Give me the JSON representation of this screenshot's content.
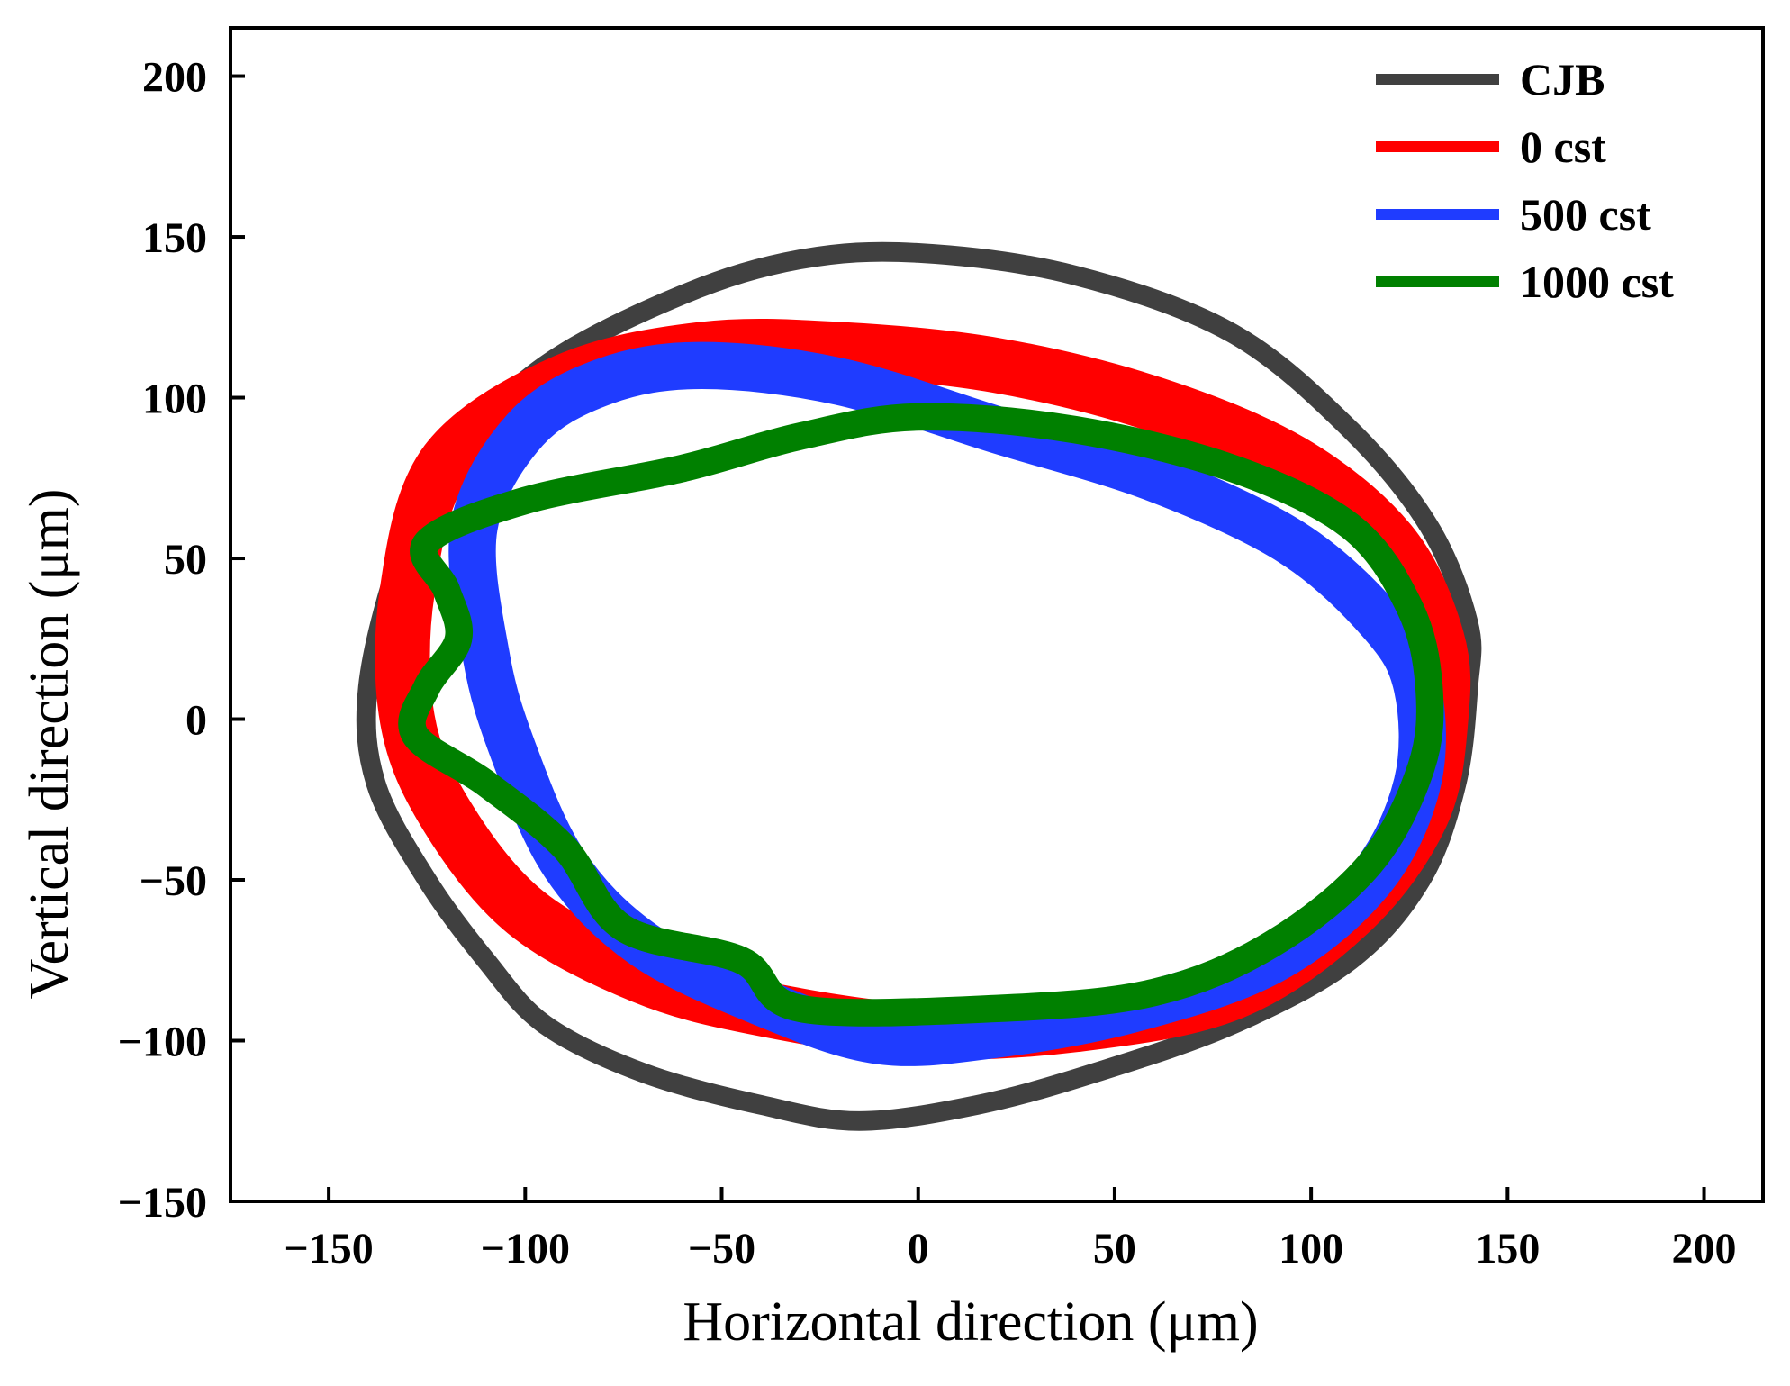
{
  "chart_data": {
    "type": "line",
    "title": "",
    "xlabel": "Horizontal direction (μm)",
    "ylabel": "Vertical direction (μm)",
    "xlim": [
      -175,
      215
    ],
    "ylim": [
      -150,
      215
    ],
    "xticks": [
      -150,
      -100,
      -50,
      0,
      50,
      100,
      150,
      200
    ],
    "yticks": [
      -150,
      -100,
      -50,
      0,
      50,
      100,
      150,
      200
    ],
    "xtick_labels": [
      "−150",
      "−100",
      "−50",
      "0",
      "50",
      "100",
      "150",
      "200"
    ],
    "ytick_labels": [
      "−150",
      "−100",
      "−50",
      "0",
      "50",
      "100",
      "150",
      "200"
    ],
    "grid": false,
    "legend_position": "top-right",
    "series": [
      {
        "name": "CJB",
        "color": "#404040",
        "band_width_um": 5,
        "points": [
          [
            0,
            145
          ],
          [
            40,
            138
          ],
          [
            80,
            120
          ],
          [
            110,
            90
          ],
          [
            130,
            60
          ],
          [
            140,
            30
          ],
          [
            140,
            10
          ],
          [
            137,
            -20
          ],
          [
            128,
            -50
          ],
          [
            110,
            -75
          ],
          [
            80,
            -95
          ],
          [
            45,
            -110
          ],
          [
            15,
            -120
          ],
          [
            -15,
            -125
          ],
          [
            -40,
            -120
          ],
          [
            -70,
            -110
          ],
          [
            -95,
            -95
          ],
          [
            -110,
            -75
          ],
          [
            -125,
            -50
          ],
          [
            -138,
            -20
          ],
          [
            -140,
            10
          ],
          [
            -132,
            50
          ],
          [
            -120,
            80
          ],
          [
            -95,
            110
          ],
          [
            -60,
            132
          ],
          [
            -30,
            143
          ],
          [
            0,
            145
          ]
        ]
      },
      {
        "name": "0 cst",
        "color": "#ff0000",
        "band_width_um": 14,
        "points": [
          [
            -20,
            115
          ],
          [
            20,
            110
          ],
          [
            60,
            98
          ],
          [
            95,
            80
          ],
          [
            120,
            55
          ],
          [
            132,
            25
          ],
          [
            133,
            0
          ],
          [
            128,
            -30
          ],
          [
            110,
            -60
          ],
          [
            80,
            -85
          ],
          [
            40,
            -95
          ],
          [
            0,
            -97
          ],
          [
            -40,
            -90
          ],
          [
            -70,
            -80
          ],
          [
            -100,
            -60
          ],
          [
            -120,
            -30
          ],
          [
            -130,
            0
          ],
          [
            -130,
            40
          ],
          [
            -120,
            80
          ],
          [
            -90,
            105
          ],
          [
            -55,
            115
          ],
          [
            -20,
            115
          ]
        ]
      },
      {
        "name": "500 cst",
        "color": "#1f3cff",
        "band_width_um": 12,
        "points": [
          [
            -55,
            110
          ],
          [
            -20,
            105
          ],
          [
            20,
            90
          ],
          [
            60,
            75
          ],
          [
            95,
            55
          ],
          [
            118,
            30
          ],
          [
            127,
            10
          ],
          [
            127,
            -20
          ],
          [
            115,
            -50
          ],
          [
            90,
            -75
          ],
          [
            55,
            -90
          ],
          [
            20,
            -98
          ],
          [
            -10,
            -100
          ],
          [
            -40,
            -88
          ],
          [
            -70,
            -70
          ],
          [
            -90,
            -45
          ],
          [
            -103,
            -10
          ],
          [
            -110,
            20
          ],
          [
            -113,
            60
          ],
          [
            -100,
            90
          ],
          [
            -80,
            105
          ],
          [
            -55,
            110
          ]
        ]
      },
      {
        "name": "1000 cst",
        "color": "#008000",
        "band_width_um": 7,
        "points": [
          [
            0,
            94
          ],
          [
            40,
            90
          ],
          [
            80,
            78
          ],
          [
            110,
            60
          ],
          [
            125,
            35
          ],
          [
            130,
            10
          ],
          [
            128,
            -15
          ],
          [
            115,
            -45
          ],
          [
            90,
            -70
          ],
          [
            60,
            -85
          ],
          [
            20,
            -90
          ],
          [
            -30,
            -90
          ],
          [
            -45,
            -75
          ],
          [
            -75,
            -65
          ],
          [
            -90,
            -40
          ],
          [
            -110,
            -20
          ],
          [
            -128,
            -5
          ],
          [
            -125,
            10
          ],
          [
            -117,
            25
          ],
          [
            -120,
            40
          ],
          [
            -125,
            55
          ],
          [
            -100,
            68
          ],
          [
            -60,
            78
          ],
          [
            -30,
            88
          ],
          [
            0,
            94
          ]
        ]
      }
    ]
  }
}
